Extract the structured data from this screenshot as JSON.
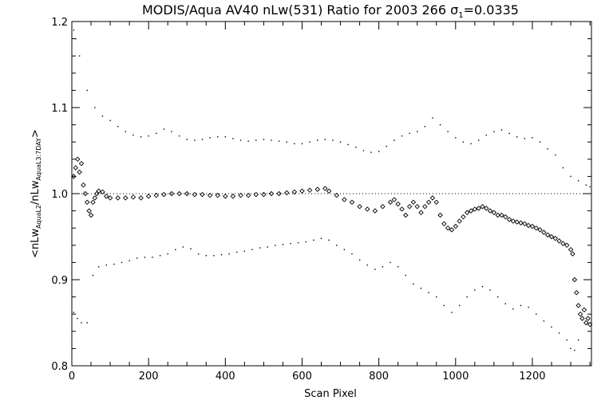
{
  "chart_data": {
    "type": "scatter",
    "title_main": "MODIS/Aqua AV40 nLw(531) Ratio for 2003 266 ",
    "title_sigma": "σ",
    "title_sub": "1",
    "title_value": "=0.0335",
    "xlabel": "Scan Pixel",
    "ylabel": {
      "open": "<nLw",
      "sub1": "AquaL2",
      "mid": "/nLw",
      "sub2": "AquaL3:7DAY",
      "close": ">"
    },
    "xlim": [
      0,
      1354
    ],
    "ylim": [
      0.8,
      1.2
    ],
    "xticks": [
      {
        "value": 0,
        "label": "0"
      },
      {
        "value": 200,
        "label": "200"
      },
      {
        "value": 400,
        "label": "400"
      },
      {
        "value": 600,
        "label": "600"
      },
      {
        "value": 800,
        "label": "800"
      },
      {
        "value": 1000,
        "label": "1000"
      },
      {
        "value": 1200,
        "label": "1200"
      }
    ],
    "yticks": [
      {
        "value": 0.8,
        "label": "0.8"
      },
      {
        "value": 0.9,
        "label": "0.9"
      },
      {
        "value": 1.0,
        "label": "1.0"
      },
      {
        "value": 1.1,
        "label": "1.1"
      },
      {
        "value": 1.2,
        "label": "1.2"
      }
    ],
    "reference_line": 1.0,
    "grid": false,
    "legend": false,
    "series": [
      {
        "role": "ratio",
        "marker": "diamond",
        "points": [
          [
            5,
            1.02
          ],
          [
            10,
            1.03
          ],
          [
            15,
            1.04
          ],
          [
            20,
            1.025
          ],
          [
            25,
            1.035
          ],
          [
            30,
            1.01
          ],
          [
            35,
            1.0
          ],
          [
            40,
            0.99
          ],
          [
            45,
            0.98
          ],
          [
            50,
            0.975
          ],
          [
            55,
            0.99
          ],
          [
            60,
            0.995
          ],
          [
            65,
            1.0
          ],
          [
            70,
            1.003
          ],
          [
            80,
            1.002
          ],
          [
            90,
            0.997
          ],
          [
            100,
            0.995
          ],
          [
            120,
            0.995
          ],
          [
            140,
            0.995
          ],
          [
            160,
            0.996
          ],
          [
            180,
            0.995
          ],
          [
            200,
            0.997
          ],
          [
            220,
            0.998
          ],
          [
            240,
            0.999
          ],
          [
            260,
            1.0
          ],
          [
            280,
            1.0
          ],
          [
            300,
            1.0
          ],
          [
            320,
            0.999
          ],
          [
            340,
            0.999
          ],
          [
            360,
            0.998
          ],
          [
            380,
            0.998
          ],
          [
            400,
            0.997
          ],
          [
            420,
            0.997
          ],
          [
            440,
            0.998
          ],
          [
            460,
            0.998
          ],
          [
            480,
            0.999
          ],
          [
            500,
            0.999
          ],
          [
            520,
            1.0
          ],
          [
            540,
            1.0
          ],
          [
            560,
            1.001
          ],
          [
            580,
            1.002
          ],
          [
            600,
            1.003
          ],
          [
            620,
            1.004
          ],
          [
            640,
            1.005
          ],
          [
            660,
            1.006
          ],
          [
            670,
            1.003
          ],
          [
            690,
            0.998
          ],
          [
            710,
            0.993
          ],
          [
            730,
            0.99
          ],
          [
            750,
            0.985
          ],
          [
            770,
            0.982
          ],
          [
            790,
            0.98
          ],
          [
            810,
            0.985
          ],
          [
            830,
            0.99
          ],
          [
            840,
            0.993
          ],
          [
            850,
            0.988
          ],
          [
            860,
            0.982
          ],
          [
            870,
            0.975
          ],
          [
            880,
            0.985
          ],
          [
            890,
            0.99
          ],
          [
            900,
            0.985
          ],
          [
            910,
            0.978
          ],
          [
            920,
            0.985
          ],
          [
            930,
            0.99
          ],
          [
            940,
            0.995
          ],
          [
            950,
            0.99
          ],
          [
            960,
            0.975
          ],
          [
            970,
            0.965
          ],
          [
            980,
            0.96
          ],
          [
            990,
            0.958
          ],
          [
            1000,
            0.962
          ],
          [
            1010,
            0.968
          ],
          [
            1020,
            0.973
          ],
          [
            1030,
            0.978
          ],
          [
            1040,
            0.98
          ],
          [
            1050,
            0.982
          ],
          [
            1060,
            0.983
          ],
          [
            1070,
            0.985
          ],
          [
            1080,
            0.983
          ],
          [
            1090,
            0.98
          ],
          [
            1100,
            0.978
          ],
          [
            1110,
            0.975
          ],
          [
            1120,
            0.975
          ],
          [
            1130,
            0.973
          ],
          [
            1140,
            0.97
          ],
          [
            1150,
            0.968
          ],
          [
            1160,
            0.967
          ],
          [
            1170,
            0.966
          ],
          [
            1180,
            0.965
          ],
          [
            1190,
            0.963
          ],
          [
            1200,
            0.962
          ],
          [
            1210,
            0.96
          ],
          [
            1220,
            0.958
          ],
          [
            1230,
            0.955
          ],
          [
            1240,
            0.952
          ],
          [
            1250,
            0.95
          ],
          [
            1260,
            0.948
          ],
          [
            1270,
            0.945
          ],
          [
            1280,
            0.942
          ],
          [
            1290,
            0.94
          ],
          [
            1300,
            0.935
          ],
          [
            1305,
            0.93
          ],
          [
            1310,
            0.9
          ],
          [
            1315,
            0.885
          ],
          [
            1320,
            0.87
          ],
          [
            1325,
            0.86
          ],
          [
            1330,
            0.855
          ],
          [
            1335,
            0.865
          ],
          [
            1340,
            0.85
          ],
          [
            1345,
            0.855
          ],
          [
            1350,
            0.848
          ]
        ]
      },
      {
        "role": "upper-envelope",
        "marker": "dot",
        "points": [
          [
            5,
            1.19
          ],
          [
            10,
            1.18
          ],
          [
            20,
            1.16
          ],
          [
            40,
            1.12
          ],
          [
            60,
            1.1
          ],
          [
            80,
            1.09
          ],
          [
            100,
            1.085
          ],
          [
            120,
            1.078
          ],
          [
            140,
            1.072
          ],
          [
            160,
            1.068
          ],
          [
            180,
            1.066
          ],
          [
            200,
            1.067
          ],
          [
            220,
            1.07
          ],
          [
            240,
            1.075
          ],
          [
            260,
            1.072
          ],
          [
            280,
            1.067
          ],
          [
            300,
            1.063
          ],
          [
            320,
            1.062
          ],
          [
            340,
            1.063
          ],
          [
            360,
            1.065
          ],
          [
            380,
            1.066
          ],
          [
            400,
            1.066
          ],
          [
            420,
            1.064
          ],
          [
            440,
            1.062
          ],
          [
            460,
            1.061
          ],
          [
            480,
            1.062
          ],
          [
            500,
            1.063
          ],
          [
            520,
            1.062
          ],
          [
            540,
            1.061
          ],
          [
            560,
            1.06
          ],
          [
            580,
            1.058
          ],
          [
            600,
            1.058
          ],
          [
            620,
            1.06
          ],
          [
            640,
            1.062
          ],
          [
            660,
            1.063
          ],
          [
            680,
            1.062
          ],
          [
            700,
            1.06
          ],
          [
            720,
            1.057
          ],
          [
            740,
            1.054
          ],
          [
            760,
            1.05
          ],
          [
            780,
            1.048
          ],
          [
            800,
            1.049
          ],
          [
            820,
            1.055
          ],
          [
            840,
            1.062
          ],
          [
            860,
            1.067
          ],
          [
            880,
            1.07
          ],
          [
            900,
            1.072
          ],
          [
            920,
            1.078
          ],
          [
            940,
            1.088
          ],
          [
            960,
            1.08
          ],
          [
            980,
            1.072
          ],
          [
            1000,
            1.065
          ],
          [
            1020,
            1.06
          ],
          [
            1040,
            1.058
          ],
          [
            1060,
            1.062
          ],
          [
            1080,
            1.068
          ],
          [
            1100,
            1.072
          ],
          [
            1120,
            1.074
          ],
          [
            1140,
            1.07
          ],
          [
            1160,
            1.066
          ],
          [
            1180,
            1.064
          ],
          [
            1200,
            1.065
          ],
          [
            1220,
            1.06
          ],
          [
            1240,
            1.052
          ],
          [
            1260,
            1.045
          ],
          [
            1280,
            1.03
          ],
          [
            1300,
            1.02
          ],
          [
            1320,
            1.015
          ],
          [
            1340,
            1.01
          ],
          [
            1350,
            1.008
          ]
        ]
      },
      {
        "role": "lower-envelope",
        "marker": "dot",
        "points": [
          [
            5,
            0.862
          ],
          [
            15,
            0.855
          ],
          [
            25,
            0.85
          ],
          [
            40,
            0.85
          ],
          [
            55,
            0.905
          ],
          [
            70,
            0.915
          ],
          [
            90,
            0.917
          ],
          [
            110,
            0.918
          ],
          [
            130,
            0.92
          ],
          [
            150,
            0.922
          ],
          [
            170,
            0.925
          ],
          [
            190,
            0.926
          ],
          [
            210,
            0.926
          ],
          [
            230,
            0.928
          ],
          [
            250,
            0.93
          ],
          [
            270,
            0.935
          ],
          [
            290,
            0.938
          ],
          [
            310,
            0.936
          ],
          [
            330,
            0.93
          ],
          [
            350,
            0.928
          ],
          [
            370,
            0.928
          ],
          [
            390,
            0.929
          ],
          [
            410,
            0.93
          ],
          [
            430,
            0.932
          ],
          [
            450,
            0.933
          ],
          [
            470,
            0.935
          ],
          [
            490,
            0.937
          ],
          [
            510,
            0.938
          ],
          [
            530,
            0.94
          ],
          [
            550,
            0.941
          ],
          [
            570,
            0.942
          ],
          [
            590,
            0.943
          ],
          [
            610,
            0.944
          ],
          [
            630,
            0.946
          ],
          [
            650,
            0.948
          ],
          [
            670,
            0.946
          ],
          [
            690,
            0.94
          ],
          [
            710,
            0.935
          ],
          [
            730,
            0.93
          ],
          [
            750,
            0.923
          ],
          [
            770,
            0.917
          ],
          [
            790,
            0.912
          ],
          [
            810,
            0.915
          ],
          [
            830,
            0.92
          ],
          [
            850,
            0.915
          ],
          [
            870,
            0.905
          ],
          [
            890,
            0.895
          ],
          [
            910,
            0.89
          ],
          [
            930,
            0.885
          ],
          [
            950,
            0.88
          ],
          [
            970,
            0.87
          ],
          [
            990,
            0.862
          ],
          [
            1010,
            0.87
          ],
          [
            1030,
            0.88
          ],
          [
            1050,
            0.888
          ],
          [
            1070,
            0.892
          ],
          [
            1090,
            0.888
          ],
          [
            1110,
            0.88
          ],
          [
            1130,
            0.872
          ],
          [
            1150,
            0.866
          ],
          [
            1170,
            0.87
          ],
          [
            1190,
            0.868
          ],
          [
            1210,
            0.86
          ],
          [
            1230,
            0.852
          ],
          [
            1250,
            0.845
          ],
          [
            1270,
            0.838
          ],
          [
            1290,
            0.83
          ],
          [
            1300,
            0.82
          ],
          [
            1310,
            0.818
          ],
          [
            1320,
            0.83
          ]
        ]
      }
    ]
  }
}
